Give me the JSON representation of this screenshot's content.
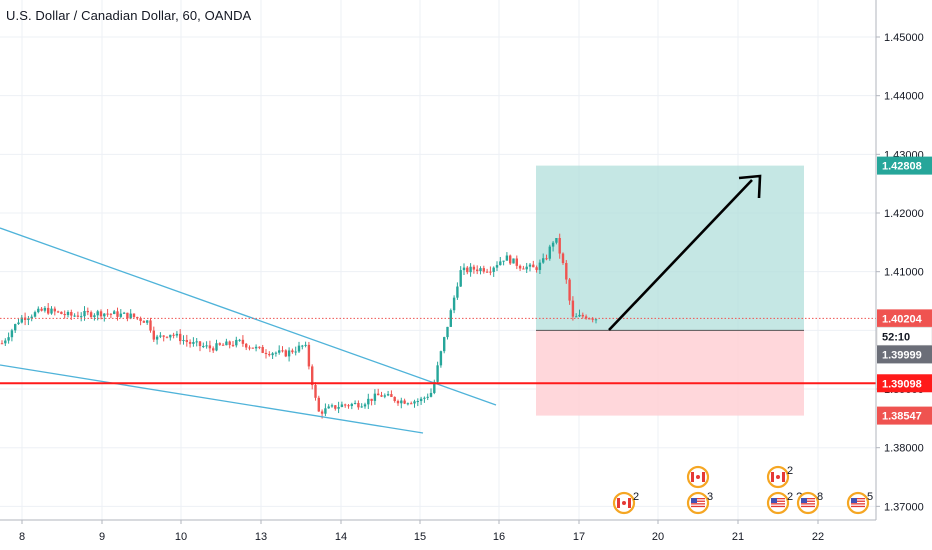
{
  "title": "U.S. Dollar / Canadian Dollar, 60, OANDA",
  "colors": {
    "up": "#26a69a",
    "down": "#ef5350",
    "grid": "#edf0f5",
    "trendline": "#4fb3d9",
    "support": "#ff1a1a",
    "target_zone": "#b2dfdb",
    "stop_zone": "#ffcdd2",
    "target_label": "#26a69a",
    "stop_label": "#ef5350",
    "current_label": "#ef5350",
    "neutral_label": "#6b6e78"
  },
  "chart_data": {
    "type": "candlestick",
    "title": "U.S. Dollar / Canadian Dollar, 60, OANDA",
    "x_ticks": [
      "8",
      "9",
      "10",
      "13",
      "14",
      "15",
      "16",
      "17",
      "20",
      "21",
      "22"
    ],
    "y_ticks": [
      "1.45000",
      "1.44000",
      "1.43000",
      "1.42000",
      "1.41000",
      "1.40000",
      "1.39000",
      "1.38000",
      "1.37000"
    ],
    "ylim": [
      1.3686,
      1.4593
    ],
    "grid": true,
    "price_labels": {
      "target": "1.42808",
      "current": "1.40204",
      "countdown": "52:10",
      "entry": "1.39999",
      "support": "1.39098",
      "stop": "1.38547"
    },
    "horizontal_levels": {
      "support": 1.39098,
      "current": 1.40204
    },
    "trendlines": [
      {
        "from": {
          "day": 7.6,
          "price": 1.4169
        },
        "to": {
          "day": 15.95,
          "price": 1.3837
        }
      },
      {
        "from": {
          "day": 7.6,
          "price": 1.3965
        },
        "to": {
          "day": 15.0,
          "price": 1.3828
        }
      }
    ],
    "position": {
      "start_day": 16.45,
      "end_day": 21.85,
      "target": 1.42808,
      "entry": 1.39999,
      "stop": 1.38547
    },
    "arrow": {
      "from": {
        "day": 17.4,
        "price": 1.4002
      },
      "to": {
        "day": 21.3,
        "price": 1.4256
      }
    },
    "events": [
      {
        "day": 17.5,
        "icon": "canada-flag",
        "count": "2"
      },
      {
        "day": 20.5,
        "icon": "canada-flag",
        "count": ""
      },
      {
        "day": 20.5,
        "icon": "us-flag",
        "count": "3"
      },
      {
        "day": 21.5,
        "icon": "canada-flag",
        "count": "2"
      },
      {
        "day": 21.5,
        "icon": "us-flag",
        "count": "2 ?"
      },
      {
        "day": 21.85,
        "icon": "us-flag",
        "count": "8"
      },
      {
        "day": 22.45,
        "icon": "us-flag",
        "count": "5 ?"
      }
    ]
  }
}
